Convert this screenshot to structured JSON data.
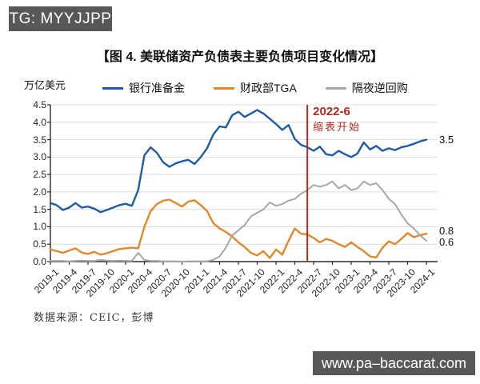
{
  "badges": {
    "top_left": "TG: MYYJJPP",
    "bottom_right": "www.pa–baccarat.com"
  },
  "colors": {
    "badge_bg": "#58585A",
    "grid": "#DCDCDC",
    "axis": "#2B2B2B",
    "red_line": "#B02A22",
    "annotation_text": "#B02A22"
  },
  "chart_data": {
    "type": "line",
    "title": "【图 4. 美联储资产负债表主要负债项目变化情况】",
    "ylabel": "万亿美元",
    "ylim": [
      0,
      4.5
    ],
    "ytick_step": 0.5,
    "grid": "horizontal",
    "legend_position": "top",
    "x_unit": "month",
    "x_tick_labels": [
      "2019-1",
      "2019-4",
      "2019-7",
      "2019-10",
      "2020-1",
      "2020-4",
      "2020-7",
      "2020-10",
      "2021-1",
      "2021-4",
      "2021-7",
      "2021-10",
      "2022-1",
      "2022-4",
      "2022-7",
      "2022-10",
      "2023-1",
      "2023-4",
      "2023-7",
      "2023-10",
      "2024-1"
    ],
    "series": [
      {
        "name": "银行准备金",
        "key": "bank-reserves",
        "color": "#1F5AA8",
        "stroke_width": 2.4,
        "end_label": "3.5",
        "values": [
          1.68,
          1.62,
          1.48,
          1.55,
          1.68,
          1.55,
          1.58,
          1.52,
          1.42,
          1.48,
          1.55,
          1.62,
          1.66,
          1.6,
          2.05,
          3.05,
          3.28,
          3.12,
          2.85,
          2.72,
          2.82,
          2.88,
          2.92,
          2.8,
          3.0,
          3.25,
          3.65,
          3.88,
          3.85,
          4.2,
          4.3,
          4.15,
          4.25,
          4.35,
          4.25,
          4.1,
          3.95,
          3.78,
          3.92,
          3.52,
          3.35,
          3.28,
          3.18,
          3.3,
          3.08,
          3.05,
          3.18,
          3.08,
          3.0,
          3.1,
          3.42,
          3.22,
          3.32,
          3.18,
          3.25,
          3.2,
          3.28,
          3.32,
          3.38,
          3.45,
          3.5
        ]
      },
      {
        "name": "财政部TGA",
        "key": "treasury-tga",
        "color": "#E0882B",
        "stroke_width": 2.4,
        "end_label": "0.8",
        "values": [
          0.35,
          0.3,
          0.25,
          0.32,
          0.38,
          0.26,
          0.22,
          0.28,
          0.2,
          0.24,
          0.3,
          0.36,
          0.38,
          0.4,
          0.38,
          1.0,
          1.45,
          1.65,
          1.75,
          1.78,
          1.68,
          1.58,
          1.72,
          1.76,
          1.62,
          1.45,
          1.1,
          0.95,
          0.85,
          0.72,
          0.55,
          0.42,
          0.25,
          0.18,
          0.3,
          0.1,
          0.35,
          0.2,
          0.6,
          0.95,
          0.8,
          0.78,
          0.68,
          0.55,
          0.65,
          0.6,
          0.5,
          0.42,
          0.55,
          0.42,
          0.3,
          0.15,
          0.12,
          0.4,
          0.58,
          0.5,
          0.65,
          0.82,
          0.7,
          0.76,
          0.8
        ]
      },
      {
        "name": "隔夜逆回购",
        "key": "overnight-rrp",
        "color": "#A7A7A7",
        "stroke_width": 2,
        "end_label": "0.6",
        "values": [
          0.02,
          0.02,
          0.02,
          0.01,
          0.02,
          0.03,
          0.02,
          0.02,
          0.05,
          0.03,
          0.02,
          0.03,
          0.02,
          0.02,
          0.25,
          0.05,
          0.02,
          0.02,
          0.01,
          0.01,
          0.01,
          0.0,
          0.01,
          0.01,
          0.01,
          0.01,
          0.05,
          0.15,
          0.4,
          0.75,
          0.9,
          1.05,
          1.3,
          1.4,
          1.5,
          1.7,
          1.6,
          1.65,
          1.75,
          1.8,
          1.95,
          2.05,
          2.2,
          2.15,
          2.2,
          2.3,
          2.1,
          2.2,
          2.05,
          2.1,
          2.3,
          2.2,
          2.25,
          2.05,
          1.8,
          1.65,
          1.35,
          1.1,
          0.95,
          0.75,
          0.6
        ]
      }
    ],
    "annotation": {
      "month_index": 41,
      "x_label": "2022-6",
      "text_line1": "2022-6",
      "text_line2": "缩表开始"
    },
    "source": "数据来源：CEIC，彭博"
  }
}
